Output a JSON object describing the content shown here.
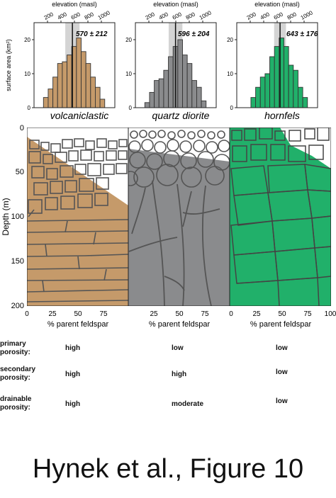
{
  "chart_data": [
    {
      "type": "bar",
      "panel": "volcaniclastic",
      "title": "volcaniclastic",
      "annotation": "570 ± 212",
      "xlabel": "elevation (masl)",
      "ylabel": "surface area (km²)",
      "x_ticks": [
        "200",
        "400",
        "600",
        "800",
        "1000"
      ],
      "y_ticks": [
        "0",
        "10",
        "20"
      ],
      "xlim": [
        0,
        1200
      ],
      "ylim": [
        0,
        25
      ],
      "mean": 570,
      "sd": 212,
      "bin_width": 70,
      "bins_start": [
        140,
        210,
        280,
        350,
        420,
        490,
        560,
        630,
        700,
        770,
        840,
        910,
        980
      ],
      "values": [
        3,
        5.5,
        9,
        13,
        13.5,
        15.5,
        18,
        20.5,
        16.5,
        13,
        9,
        6,
        2.5
      ],
      "color": "#c59a6a"
    },
    {
      "type": "bar",
      "panel": "quartz diorite",
      "title": "quartz diorite",
      "annotation": "596 ± 204",
      "xlabel": "elevation (masl)",
      "x_ticks": [
        "200",
        "400",
        "600",
        "800",
        "1000"
      ],
      "y_ticks": [
        "0",
        "10",
        "20"
      ],
      "xlim": [
        0,
        1200
      ],
      "ylim": [
        0,
        25
      ],
      "mean": 596,
      "sd": 204,
      "bin_width": 70,
      "bins_start": [
        140,
        210,
        280,
        350,
        420,
        490,
        560,
        630,
        700,
        770,
        840,
        910,
        980
      ],
      "values": [
        1.5,
        4.5,
        8,
        8.5,
        11,
        15,
        18,
        20,
        15.5,
        13,
        8,
        6,
        2
      ],
      "color": "#8a8b8d"
    },
    {
      "type": "bar",
      "panel": "hornfels",
      "title": "hornfels",
      "annotation": "643 ± 176",
      "xlabel": "elevation (masl)",
      "x_ticks": [
        "200",
        "400",
        "600",
        "800",
        "1000"
      ],
      "y_ticks": [
        "0",
        "10",
        "20"
      ],
      "xlim": [
        0,
        1200
      ],
      "ylim": [
        0,
        25
      ],
      "mean": 643,
      "sd": 176,
      "bin_width": 70,
      "bins_start": [
        210,
        280,
        350,
        420,
        490,
        560,
        630,
        700,
        770,
        840,
        910,
        980
      ],
      "values": [
        3,
        6,
        9,
        10,
        15,
        18,
        20.5,
        18,
        12.5,
        11,
        6,
        3
      ],
      "color": "#21b06a"
    }
  ],
  "profile": {
    "ylabel": "Depth (m)",
    "y_ticks": [
      "0",
      "50",
      "100",
      "150",
      "200"
    ],
    "columns": [
      {
        "name": "volcaniclastic",
        "x_ticks": [
          "0",
          "25",
          "50",
          "75"
        ],
        "xlabel": "% parent feldspar",
        "color": "#c59a6a"
      },
      {
        "name": "quartz diorite",
        "x_ticks": [
          "25",
          "50",
          "75"
        ],
        "xlabel": "% parent feldspar",
        "color": "#8a8b8d"
      },
      {
        "name": "hornfels",
        "x_ticks": [
          "0",
          "25",
          "50",
          "75",
          "100"
        ],
        "xlabel": "% parent feldspar",
        "color": "#21b06a"
      }
    ]
  },
  "properties": [
    {
      "label": "primary\nporosity:",
      "values": [
        "high",
        "low",
        "low"
      ]
    },
    {
      "label": "secondary\nporosity:",
      "values": [
        "high",
        "high",
        "low"
      ]
    },
    {
      "label": "drainable\nporosity:",
      "values": [
        "high",
        "moderate",
        "low"
      ]
    }
  ],
  "caption": "Hynek et al., Figure 10"
}
